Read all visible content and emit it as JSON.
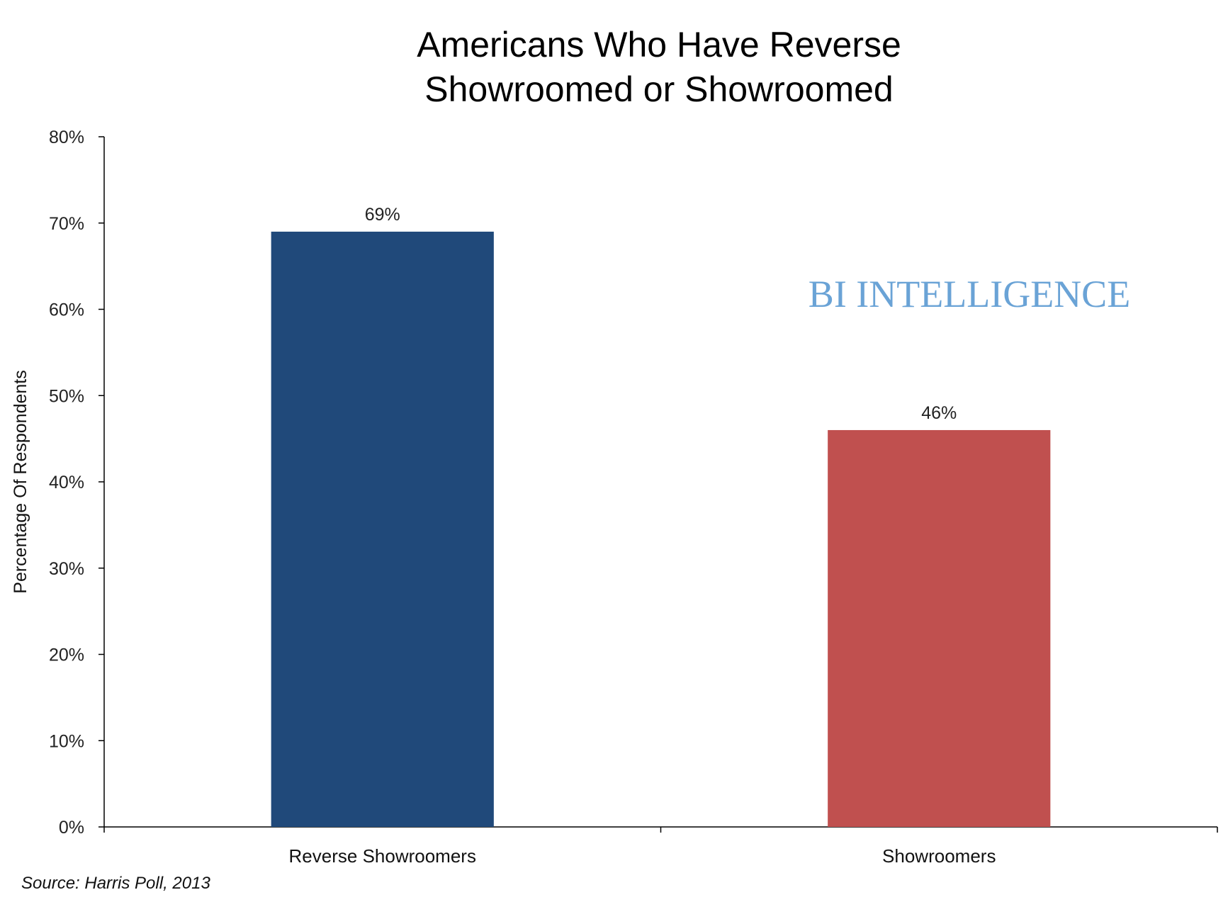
{
  "chart_data": {
    "type": "bar",
    "title_lines": [
      "Americans Who Have Reverse",
      "Showroomed or Showroomed"
    ],
    "ylabel": "Percentage Of Respondents",
    "xlabel": "",
    "categories": [
      "Reverse Showroomers",
      "Showroomers"
    ],
    "values": [
      69,
      46
    ],
    "value_labels": [
      "69%",
      "46%"
    ],
    "bar_colors": [
      "#20497a",
      "#c0504f"
    ],
    "ylim": [
      0,
      80
    ],
    "yticks": [
      0,
      10,
      20,
      30,
      40,
      50,
      60,
      70,
      80
    ],
    "ytick_labels": [
      "0%",
      "10%",
      "20%",
      "30%",
      "40%",
      "50%",
      "60%",
      "70%",
      "80%"
    ],
    "grid": false,
    "legend": "none"
  },
  "watermark": "BI INTELLIGENCE",
  "watermark_color": "#6aa3d6",
  "source": "Source: Harris Poll, 2013"
}
